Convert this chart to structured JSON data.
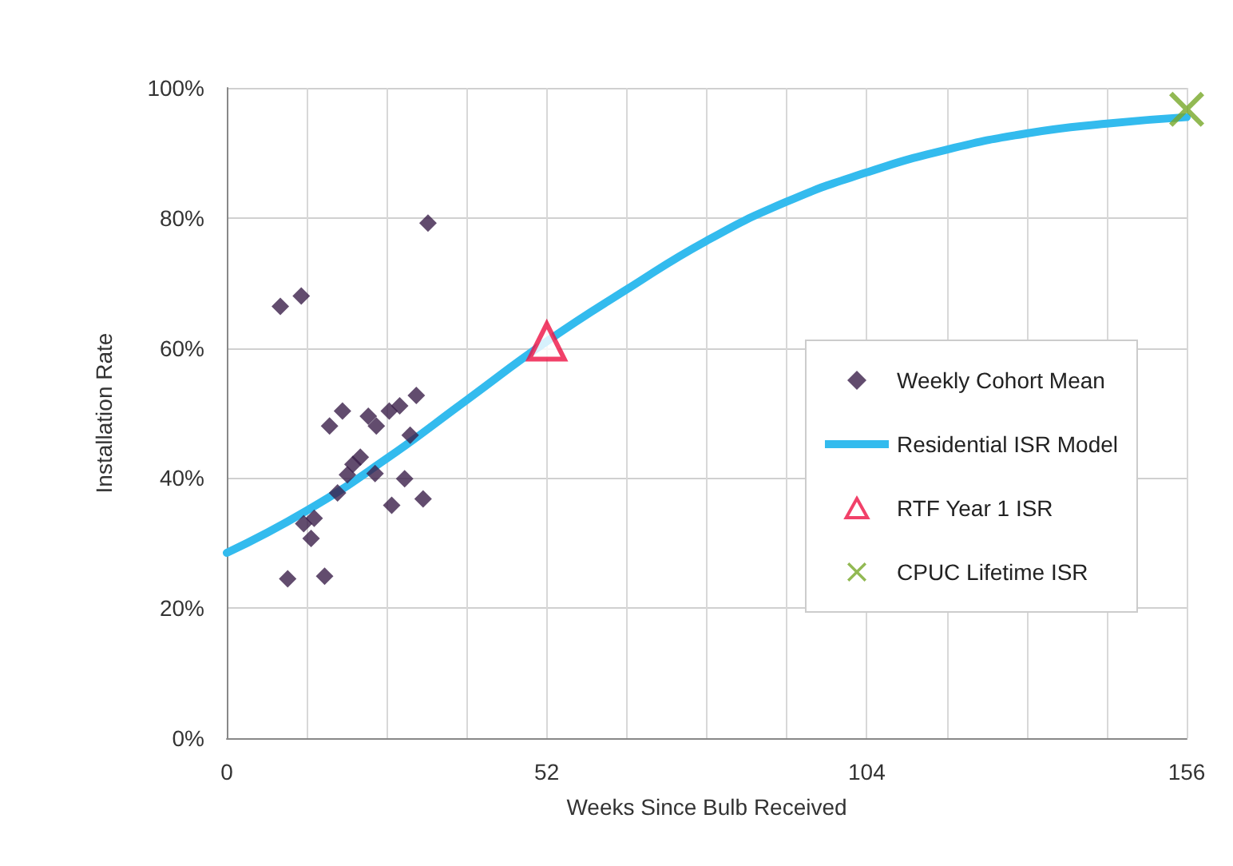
{
  "chart_data": {
    "type": "scatter",
    "xlabel": "Weeks Since Bulb Received",
    "ylabel": "Installation Rate",
    "xlim": [
      0,
      156
    ],
    "xticks": [
      0,
      {
        "value": 13,
        "label": null
      },
      {
        "value": 26,
        "label": null
      },
      {
        "value": 39,
        "label": null
      },
      52,
      {
        "value": 65,
        "label": null
      },
      {
        "value": 78,
        "label": null
      },
      {
        "value": 91,
        "label": null
      },
      104,
      {
        "value": 117,
        "label": null
      },
      {
        "value": 130,
        "label": null
      },
      {
        "value": 143,
        "label": null
      },
      156
    ],
    "ylim": [
      0,
      100
    ],
    "yticks": [
      {
        "value": 0,
        "label": "0%"
      },
      {
        "value": 20,
        "label": "20%"
      },
      {
        "value": 40,
        "label": "40%"
      },
      {
        "value": 60,
        "label": "60%"
      },
      {
        "value": 80,
        "label": "80%"
      },
      {
        "value": 100,
        "label": "100%"
      }
    ],
    "grid": true,
    "legend": "right",
    "series": [
      {
        "name": "Weekly Cohort Mean",
        "marker": "diamond",
        "color": "#3b1f4a",
        "x": [
          8.7,
          12.1,
          32.7,
          18.8,
          16.7,
          23.0,
          24.3,
          26.4,
          28.1,
          30.8,
          29.8,
          21.7,
          20.5,
          19.6,
          24.1,
          28.9,
          18.0,
          26.8,
          31.9,
          14.2,
          12.5,
          13.7,
          9.9,
          15.9
        ],
        "values": [
          66.4,
          68.0,
          79.2,
          50.3,
          48.0,
          49.5,
          48.0,
          50.3,
          51.1,
          52.7,
          46.6,
          43.2,
          42.1,
          40.5,
          40.7,
          39.9,
          37.7,
          35.8,
          36.8,
          33.8,
          33.0,
          30.7,
          24.5,
          24.9
        ]
      },
      {
        "name": "Residential ISR Model",
        "type": "line",
        "marker": "none",
        "line_style": "solid",
        "color": "#33bbee",
        "x": [
          0,
          13,
          26,
          39,
          52,
          65,
          78,
          91,
          104,
          117,
          130,
          143,
          156
        ],
        "values": [
          28.5,
          35,
          43,
          52,
          61,
          69,
          76.5,
          82.5,
          87,
          90.5,
          93,
          94.5,
          95.5
        ]
      },
      {
        "name": "RTF Year 1 ISR",
        "marker": "triangle",
        "color": "#ee1144",
        "x": [
          52
        ],
        "values": [
          61
        ]
      },
      {
        "name": "CPUC Lifetime ISR",
        "marker": "cross",
        "color": "#77a828",
        "x": [
          156
        ],
        "values": [
          96.7
        ]
      }
    ]
  }
}
